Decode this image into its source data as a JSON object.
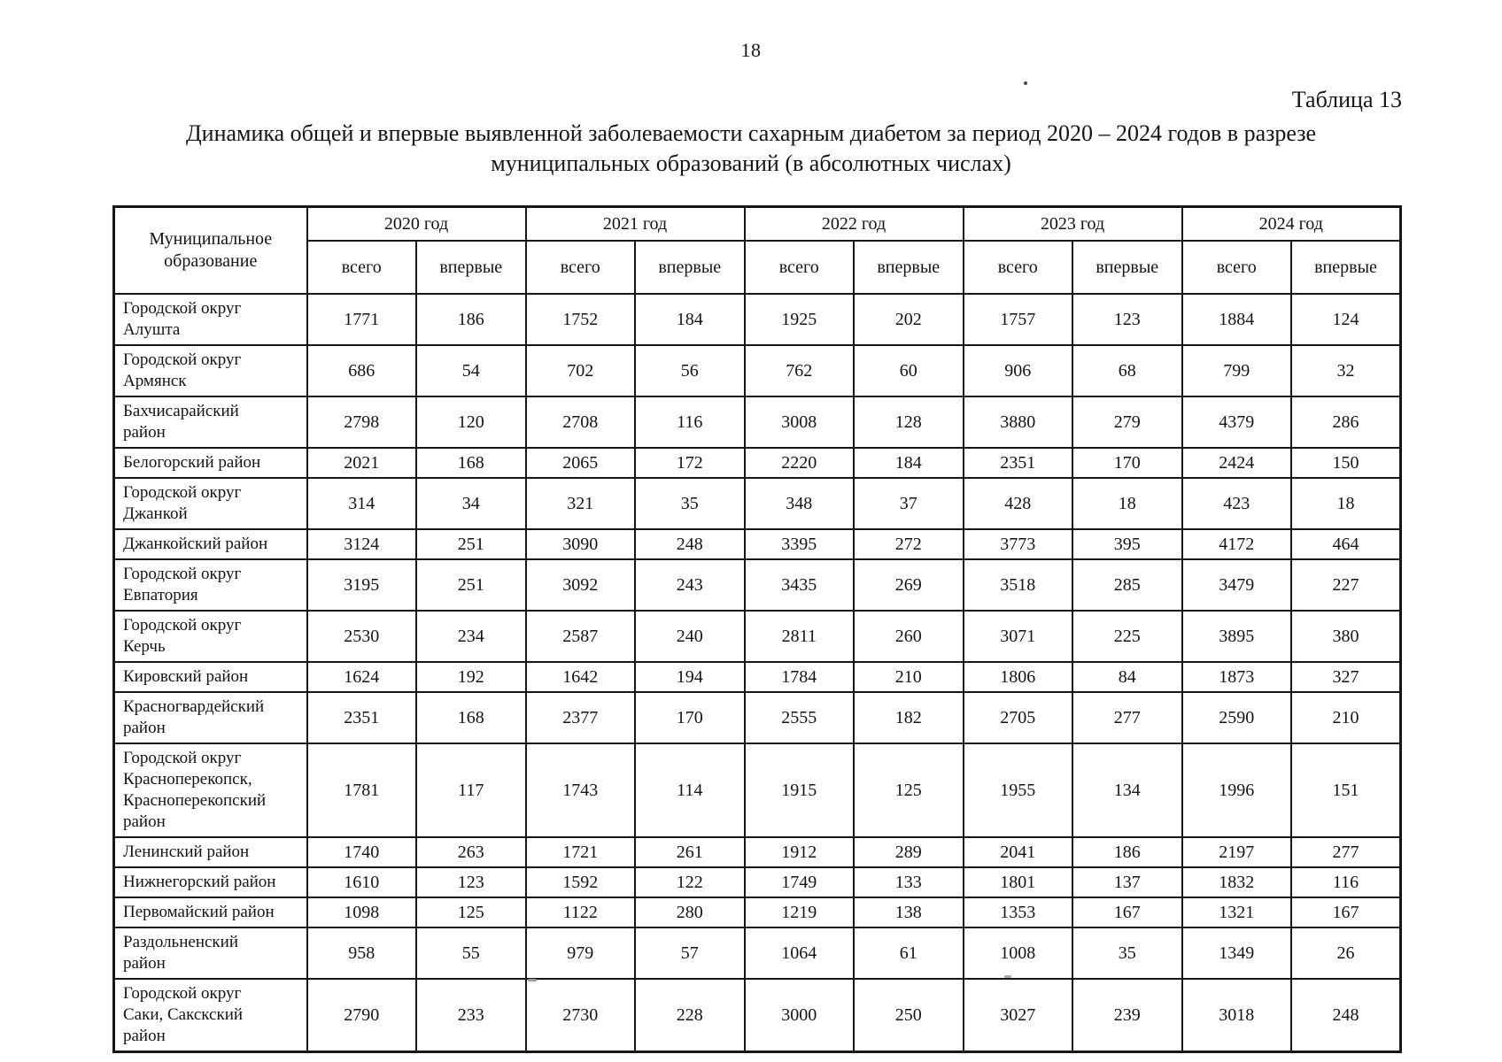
{
  "page": {
    "number": "18"
  },
  "table_label": "Таблица 13",
  "title": "Динамика общей и впервые выявленной заболеваемости сахарным диабетом за период 2020 – 2024 годов в разрезе муниципальных образований (в абсолютных числах)",
  "table": {
    "corner_header": "Муниципальное\nобразование",
    "year_groups": [
      "2020 год",
      "2021 год",
      "2022 год",
      "2023 год",
      "2024 год"
    ],
    "sub_headers": [
      "всего",
      "впервые"
    ],
    "rows": [
      {
        "name": "Городской округ\nАлушта",
        "values": [
          1771,
          186,
          1752,
          184,
          1925,
          202,
          1757,
          123,
          1884,
          124
        ]
      },
      {
        "name": "Городской округ\nАрмянск",
        "values": [
          686,
          54,
          702,
          56,
          762,
          60,
          906,
          68,
          799,
          32
        ]
      },
      {
        "name": "Бахчисарайский\nрайон",
        "values": [
          2798,
          120,
          2708,
          116,
          3008,
          128,
          3880,
          279,
          4379,
          286
        ]
      },
      {
        "name": "Белогорский район",
        "values": [
          2021,
          168,
          2065,
          172,
          2220,
          184,
          2351,
          170,
          2424,
          150
        ]
      },
      {
        "name": "Городской округ\nДжанкой",
        "values": [
          314,
          34,
          321,
          35,
          348,
          37,
          428,
          18,
          423,
          18
        ]
      },
      {
        "name": "Джанкойский район",
        "values": [
          3124,
          251,
          3090,
          248,
          3395,
          272,
          3773,
          395,
          4172,
          464
        ]
      },
      {
        "name": "Городской округ\nЕвпатория",
        "values": [
          3195,
          251,
          3092,
          243,
          3435,
          269,
          3518,
          285,
          3479,
          227
        ]
      },
      {
        "name": "Городской округ\nКерчь",
        "values": [
          2530,
          234,
          2587,
          240,
          2811,
          260,
          3071,
          225,
          3895,
          380
        ]
      },
      {
        "name": "Кировский район",
        "values": [
          1624,
          192,
          1642,
          194,
          1784,
          210,
          1806,
          84,
          1873,
          327
        ]
      },
      {
        "name": "Красногвардейский\nрайон",
        "values": [
          2351,
          168,
          2377,
          170,
          2555,
          182,
          2705,
          277,
          2590,
          210
        ]
      },
      {
        "name": "Городской округ\nКрасноперекопск,\nКрасноперекопский\nрайон",
        "values": [
          1781,
          117,
          1743,
          114,
          1915,
          125,
          1955,
          134,
          1996,
          151
        ]
      },
      {
        "name": "Ленинский район",
        "values": [
          1740,
          263,
          1721,
          261,
          1912,
          289,
          2041,
          186,
          2197,
          277
        ]
      },
      {
        "name": "Нижнегорский район",
        "values": [
          1610,
          123,
          1592,
          122,
          1749,
          133,
          1801,
          137,
          1832,
          116
        ]
      },
      {
        "name": "Первомайский район",
        "values": [
          1098,
          125,
          1122,
          280,
          1219,
          138,
          1353,
          167,
          1321,
          167
        ]
      },
      {
        "name": "Раздольненский\nрайон",
        "values": [
          958,
          55,
          979,
          57,
          1064,
          61,
          1008,
          35,
          1349,
          26
        ]
      },
      {
        "name": "Городской округ\nСаки, Сакскский\nрайон",
        "values": [
          2790,
          233,
          2730,
          228,
          3000,
          250,
          3027,
          239,
          3018,
          248
        ]
      }
    ]
  }
}
